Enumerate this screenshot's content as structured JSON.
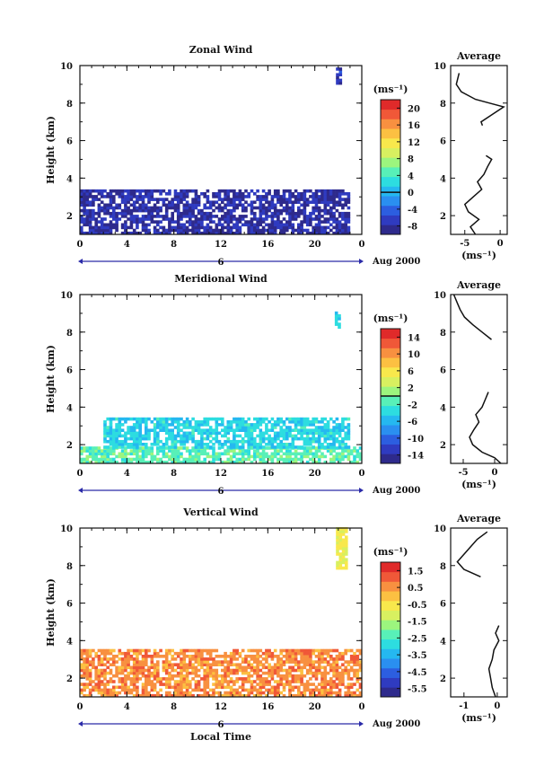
{
  "x_label": "Local Time",
  "date_label": "Aug 2000",
  "day_marker": "6",
  "x_ticks": [
    "0",
    "4",
    "8",
    "12",
    "16",
    "20",
    "0"
  ],
  "h_ticks": [
    "2",
    "4",
    "6",
    "8",
    "10"
  ],
  "y_label": "Height (km)",
  "unit_label": "(ms⁻¹)",
  "avg_title": "Average",
  "colors": {
    "scale": [
      "#2e2a8c",
      "#2f3bc0",
      "#2c5ee0",
      "#2a8ff0",
      "#25b8f0",
      "#2ddde0",
      "#58f0b8",
      "#9cf57e",
      "#d8f060",
      "#f8e84c",
      "#fcc042",
      "#f89040",
      "#f05838",
      "#e02a2a"
    ]
  },
  "chart_data": [
    {
      "type": "heatmap",
      "title": "Zonal Wind",
      "xlabel": "",
      "ylabel": "Height (km)",
      "xlim": [
        0,
        24
      ],
      "ylim": [
        1,
        10
      ],
      "colorbar_ticks": [
        "20",
        "16",
        "12",
        "8",
        "4",
        "0",
        "-4",
        "-8"
      ],
      "colorbar_range": [
        -10,
        22
      ],
      "zero_level": 0,
      "wind_regions": [
        {
          "hour_start": 0.0,
          "hour_end": 22.8,
          "height_start": 1.0,
          "height_end": 3.3,
          "typical_value": -8
        },
        {
          "hour_start": 21.8,
          "hour_end": 22.1,
          "height_start": 9.0,
          "height_end": 9.8,
          "typical_value": -7
        }
      ],
      "average_profile": {
        "title": "Average",
        "xlabel": "(ms⁻¹)",
        "x_ticks": [
          "-5",
          "0"
        ],
        "xlim": [
          -7,
          1
        ],
        "y_ticks": [
          "2",
          "4",
          "6",
          "8",
          "10"
        ],
        "heights": [
          1.0,
          1.4,
          1.8,
          2.2,
          2.6,
          3.0,
          3.4,
          3.8,
          4.2,
          4.6,
          5.0,
          5.2
        ],
        "values": [
          -3.5,
          -4.2,
          -3.0,
          -4.5,
          -5.0,
          -3.8,
          -2.6,
          -3.2,
          -2.3,
          -1.8,
          -1.2,
          -2.0
        ],
        "upper_heights": [
          6.8,
          7.0,
          7.8,
          8.0,
          8.2,
          8.6,
          9.0,
          9.6
        ],
        "upper_values": [
          -2.5,
          -2.7,
          0.5,
          -1.5,
          -3.5,
          -5.5,
          -6.2,
          -5.8
        ]
      }
    },
    {
      "type": "heatmap",
      "title": "Meridional Wind",
      "xlabel": "",
      "ylabel": "Height (km)",
      "xlim": [
        0,
        24
      ],
      "ylim": [
        1,
        10
      ],
      "colorbar_ticks": [
        "14",
        "10",
        "6",
        "2",
        "-2",
        "-6",
        "-10",
        "-14"
      ],
      "colorbar_range": [
        -16,
        16
      ],
      "zero_level": 0,
      "wind_regions": [
        {
          "hour_start": 0.0,
          "hour_end": 24.0,
          "height_start": 1.0,
          "height_end": 1.8,
          "typical_value": -1
        },
        {
          "hour_start": 2.0,
          "hour_end": 23.0,
          "height_start": 1.8,
          "height_end": 3.3,
          "typical_value": -4
        },
        {
          "hour_start": 21.7,
          "hour_end": 22.2,
          "height_start": 8.2,
          "height_end": 9.1,
          "typical_value": -4
        }
      ],
      "average_profile": {
        "title": "Average",
        "xlabel": "(ms⁻¹)",
        "x_ticks": [
          "-5",
          "0"
        ],
        "xlim": [
          -7,
          2
        ],
        "y_ticks": [
          "2",
          "4",
          "6",
          "8",
          "10"
        ],
        "heights": [
          1.0,
          1.3,
          1.6,
          2.0,
          2.4,
          2.8,
          3.2,
          3.6,
          4.0,
          4.4,
          4.8
        ],
        "values": [
          1.0,
          0.0,
          -2.0,
          -3.5,
          -4.0,
          -3.3,
          -2.5,
          -3.0,
          -2.0,
          -1.5,
          -1.0
        ],
        "upper_heights": [
          7.6,
          8.0,
          8.4,
          8.8,
          9.2,
          9.6,
          10.0
        ],
        "upper_values": [
          -0.5,
          -2.0,
          -3.5,
          -4.8,
          -5.5,
          -6.0,
          -6.5
        ]
      }
    },
    {
      "type": "heatmap",
      "title": "Vertical Wind",
      "xlabel": "Local Time",
      "ylabel": "Height (km)",
      "xlim": [
        0,
        24
      ],
      "ylim": [
        1,
        10
      ],
      "colorbar_ticks": [
        "1.5",
        "0.5",
        "-0.5",
        "-1.5",
        "-2.5",
        "-3.5",
        "-4.5",
        "-5.5"
      ],
      "colorbar_range": [
        -6,
        2
      ],
      "zero_level": null,
      "wind_regions": [
        {
          "hour_start": 0.0,
          "hour_end": 24.0,
          "height_start": 1.0,
          "height_end": 3.5,
          "typical_value": 0.6
        },
        {
          "hour_start": 21.8,
          "hour_end": 22.6,
          "height_start": 7.8,
          "height_end": 10.0,
          "typical_value": -0.8
        }
      ],
      "average_profile": {
        "title": "Average",
        "xlabel": "(ms⁻¹)",
        "x_ticks": [
          "-1",
          "0"
        ],
        "xlim": [
          -1.4,
          0.3
        ],
        "y_ticks": [
          "2",
          "4",
          "6",
          "8",
          "10"
        ],
        "heights": [
          1.0,
          1.5,
          2.0,
          2.5,
          3.0,
          3.5,
          4.0,
          4.4,
          4.8
        ],
        "values": [
          -0.05,
          -0.15,
          -0.2,
          -0.25,
          -0.15,
          -0.1,
          0.05,
          -0.05,
          0.05
        ],
        "upper_heights": [
          7.4,
          7.8,
          8.2,
          8.6,
          9.0,
          9.4,
          9.8
        ],
        "upper_values": [
          -0.5,
          -1.0,
          -1.2,
          -1.0,
          -0.8,
          -0.6,
          -0.3
        ]
      }
    }
  ]
}
